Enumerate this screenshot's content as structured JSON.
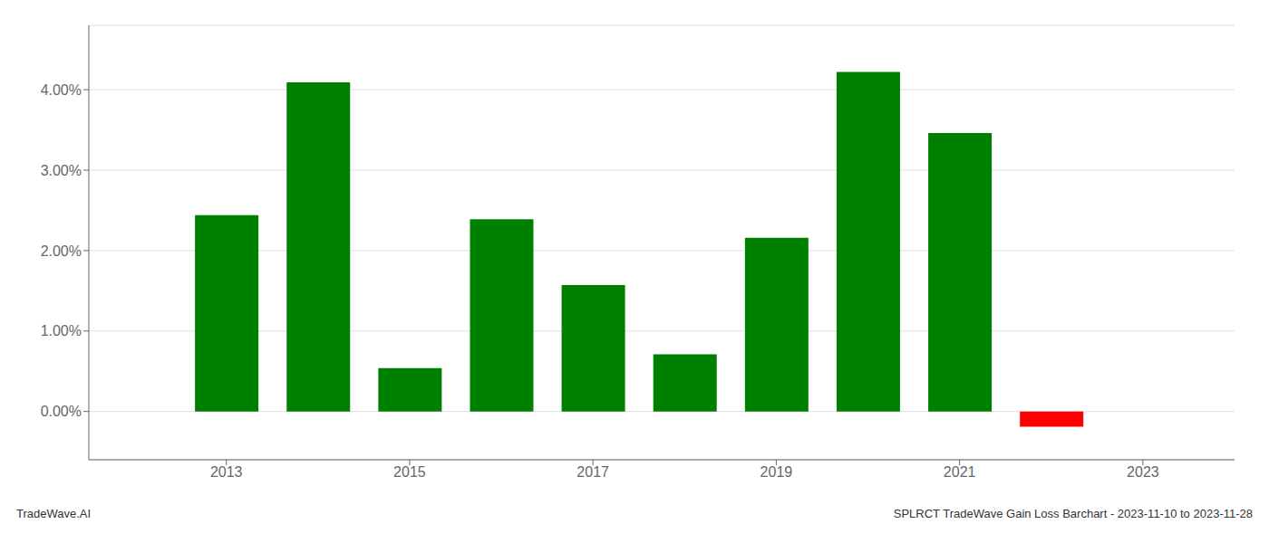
{
  "chart_data": {
    "type": "bar",
    "x": [
      2013,
      2014,
      2015,
      2016,
      2017,
      2018,
      2019,
      2020,
      2021,
      2022
    ],
    "values": [
      0.0244,
      0.0409,
      0.0054,
      0.0239,
      0.0157,
      0.0071,
      0.0216,
      0.0422,
      0.0346,
      -0.0019
    ],
    "colors": [
      "#008000",
      "#008000",
      "#008000",
      "#008000",
      "#008000",
      "#008000",
      "#008000",
      "#008000",
      "#008000",
      "#ff0000"
    ],
    "xlim": [
      2011.5,
      2024.0
    ],
    "xticks": [
      2013,
      2015,
      2017,
      2019,
      2021,
      2023
    ],
    "ylim": [
      -0.006,
      0.048
    ],
    "yticks": [
      {
        "value": 0.0,
        "label": "0.00%"
      },
      {
        "value": 0.01,
        "label": "1.00%"
      },
      {
        "value": 0.02,
        "label": "2.00%"
      },
      {
        "value": 0.03,
        "label": "3.00%"
      },
      {
        "value": 0.04,
        "label": "4.00%"
      }
    ],
    "grid": true,
    "annotations": [
      "TradeWave.AI",
      "SPLRCT TradeWave Gain Loss Barchart - 2023-11-10 to 2023-11-28"
    ]
  }
}
